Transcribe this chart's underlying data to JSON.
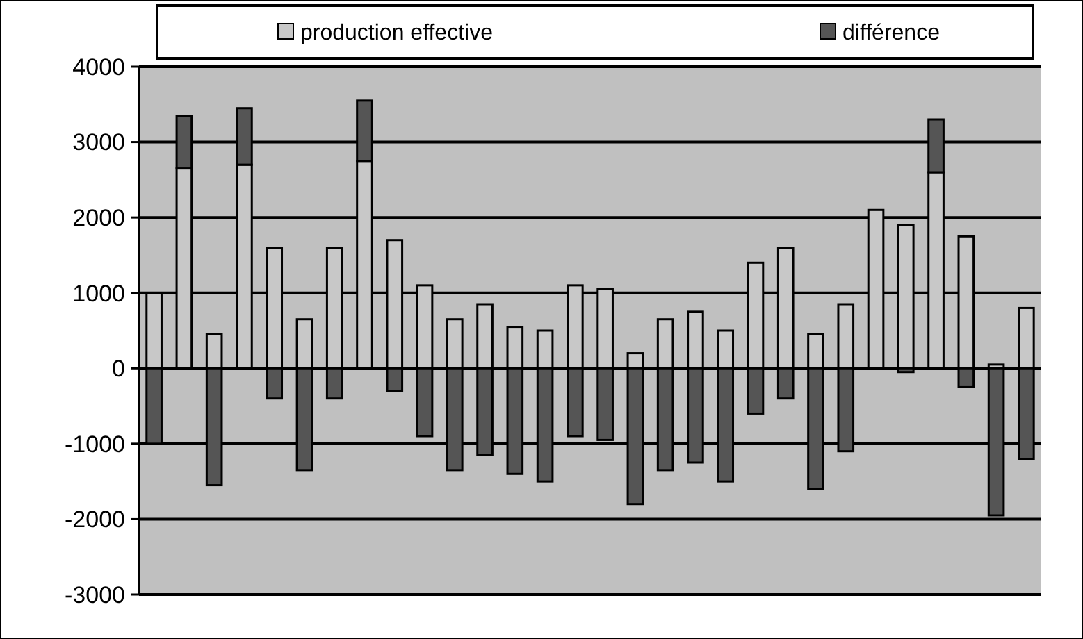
{
  "chart_data": {
    "type": "bar",
    "stacked": true,
    "categories": [
      null,
      null,
      null,
      null,
      null,
      null,
      null,
      null,
      null,
      null,
      null,
      null,
      null,
      null,
      null,
      null,
      null,
      null,
      null,
      null,
      null,
      null,
      null,
      null,
      null,
      null,
      null,
      null,
      null,
      null
    ],
    "series": [
      {
        "name": "production effective",
        "color": "#c8c8c8",
        "values": [
          1000,
          2650,
          450,
          2700,
          1600,
          650,
          1600,
          2750,
          1700,
          1100,
          650,
          850,
          550,
          500,
          1100,
          1050,
          200,
          650,
          750,
          500,
          1400,
          1600,
          450,
          850,
          2100,
          1900,
          2600,
          1750,
          50,
          800
        ]
      },
      {
        "name": "différence",
        "color": "#555555",
        "values": [
          -1000,
          700,
          -1550,
          750,
          -400,
          -1350,
          -400,
          800,
          -300,
          -900,
          -1350,
          -1150,
          -1400,
          -1500,
          -900,
          -950,
          -1800,
          -1350,
          -1250,
          -1500,
          -600,
          -400,
          -1600,
          -1100,
          null,
          -50,
          700,
          -250,
          -1950,
          -1200
        ]
      }
    ],
    "ylim": [
      -3000,
      4000
    ],
    "yticks": [
      -3000,
      -2000,
      -1000,
      0,
      1000,
      2000,
      3000,
      4000
    ],
    "grid": "y",
    "legend": "top"
  }
}
